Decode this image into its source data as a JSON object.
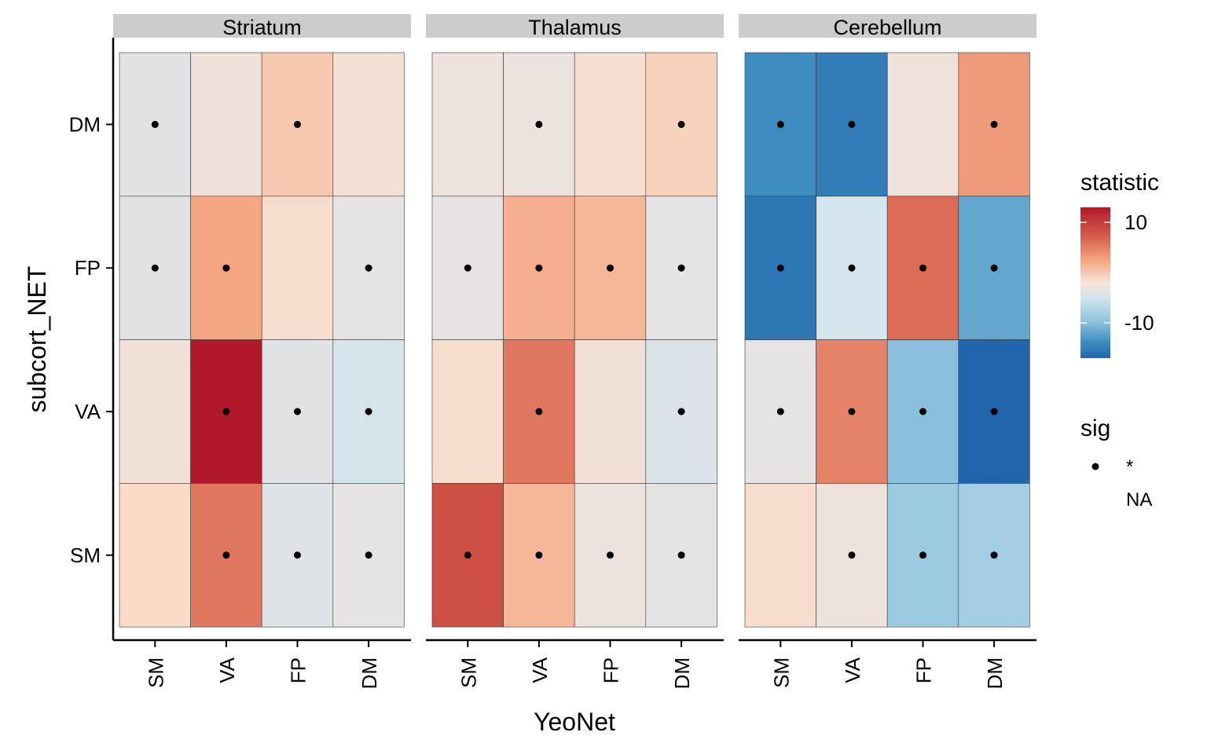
{
  "chart_data": {
    "type": "heatmap",
    "xlabel": "YeoNet",
    "ylabel": "subcort_NET",
    "x_categories": [
      "SM",
      "VA",
      "FP",
      "DM"
    ],
    "y_categories": [
      "DM",
      "FP",
      "VA",
      "SM"
    ],
    "color_scale": {
      "title": "statistic",
      "low_color": "#2166ac",
      "mid_color": "#f7f7f7",
      "high_color": "#b2182b",
      "domain": [
        -17,
        13
      ],
      "ticks": [
        10,
        -10
      ]
    },
    "sig_legend": {
      "title": "sig",
      "labels": [
        "*",
        "NA"
      ]
    },
    "panels": [
      {
        "name": "Striatum",
        "values": {
          "DM": [
            -1.0,
            0.8,
            3.5,
            1.2
          ],
          "FP": [
            -1.0,
            5.5,
            2.0,
            -0.5
          ],
          "VA": [
            1.0,
            13.0,
            -1.0,
            -3.0
          ],
          "SM": [
            2.5,
            7.5,
            -1.5,
            -0.5
          ]
        },
        "sig": {
          "DM": [
            true,
            false,
            true,
            false
          ],
          "FP": [
            true,
            true,
            false,
            true
          ],
          "VA": [
            false,
            true,
            true,
            true
          ],
          "SM": [
            false,
            true,
            true,
            true
          ]
        }
      },
      {
        "name": "Thalamus",
        "values": {
          "DM": [
            0.5,
            0.3,
            1.5,
            3.0
          ],
          "FP": [
            -0.3,
            5.0,
            4.5,
            -0.5
          ],
          "VA": [
            2.0,
            7.5,
            1.0,
            -2.0
          ],
          "SM": [
            9.5,
            4.5,
            0.3,
            -0.7
          ]
        },
        "sig": {
          "DM": [
            false,
            true,
            false,
            true
          ],
          "FP": [
            true,
            true,
            true,
            true
          ],
          "VA": [
            false,
            true,
            false,
            true
          ],
          "SM": [
            true,
            true,
            true,
            true
          ]
        }
      },
      {
        "name": "Cerebellum",
        "values": {
          "DM": [
            -13.5,
            -15.0,
            0.6,
            6.0
          ],
          "FP": [
            -15.5,
            -3.5,
            8.0,
            -11.0
          ],
          "VA": [
            -0.5,
            7.0,
            -8.5,
            -17.0
          ],
          "SM": [
            2.0,
            0.5,
            -7.5,
            -7.0
          ]
        },
        "sig": {
          "DM": [
            true,
            true,
            false,
            true
          ],
          "FP": [
            true,
            true,
            true,
            true
          ],
          "VA": [
            true,
            true,
            true,
            true
          ],
          "SM": [
            false,
            true,
            true,
            true
          ]
        }
      }
    ]
  }
}
